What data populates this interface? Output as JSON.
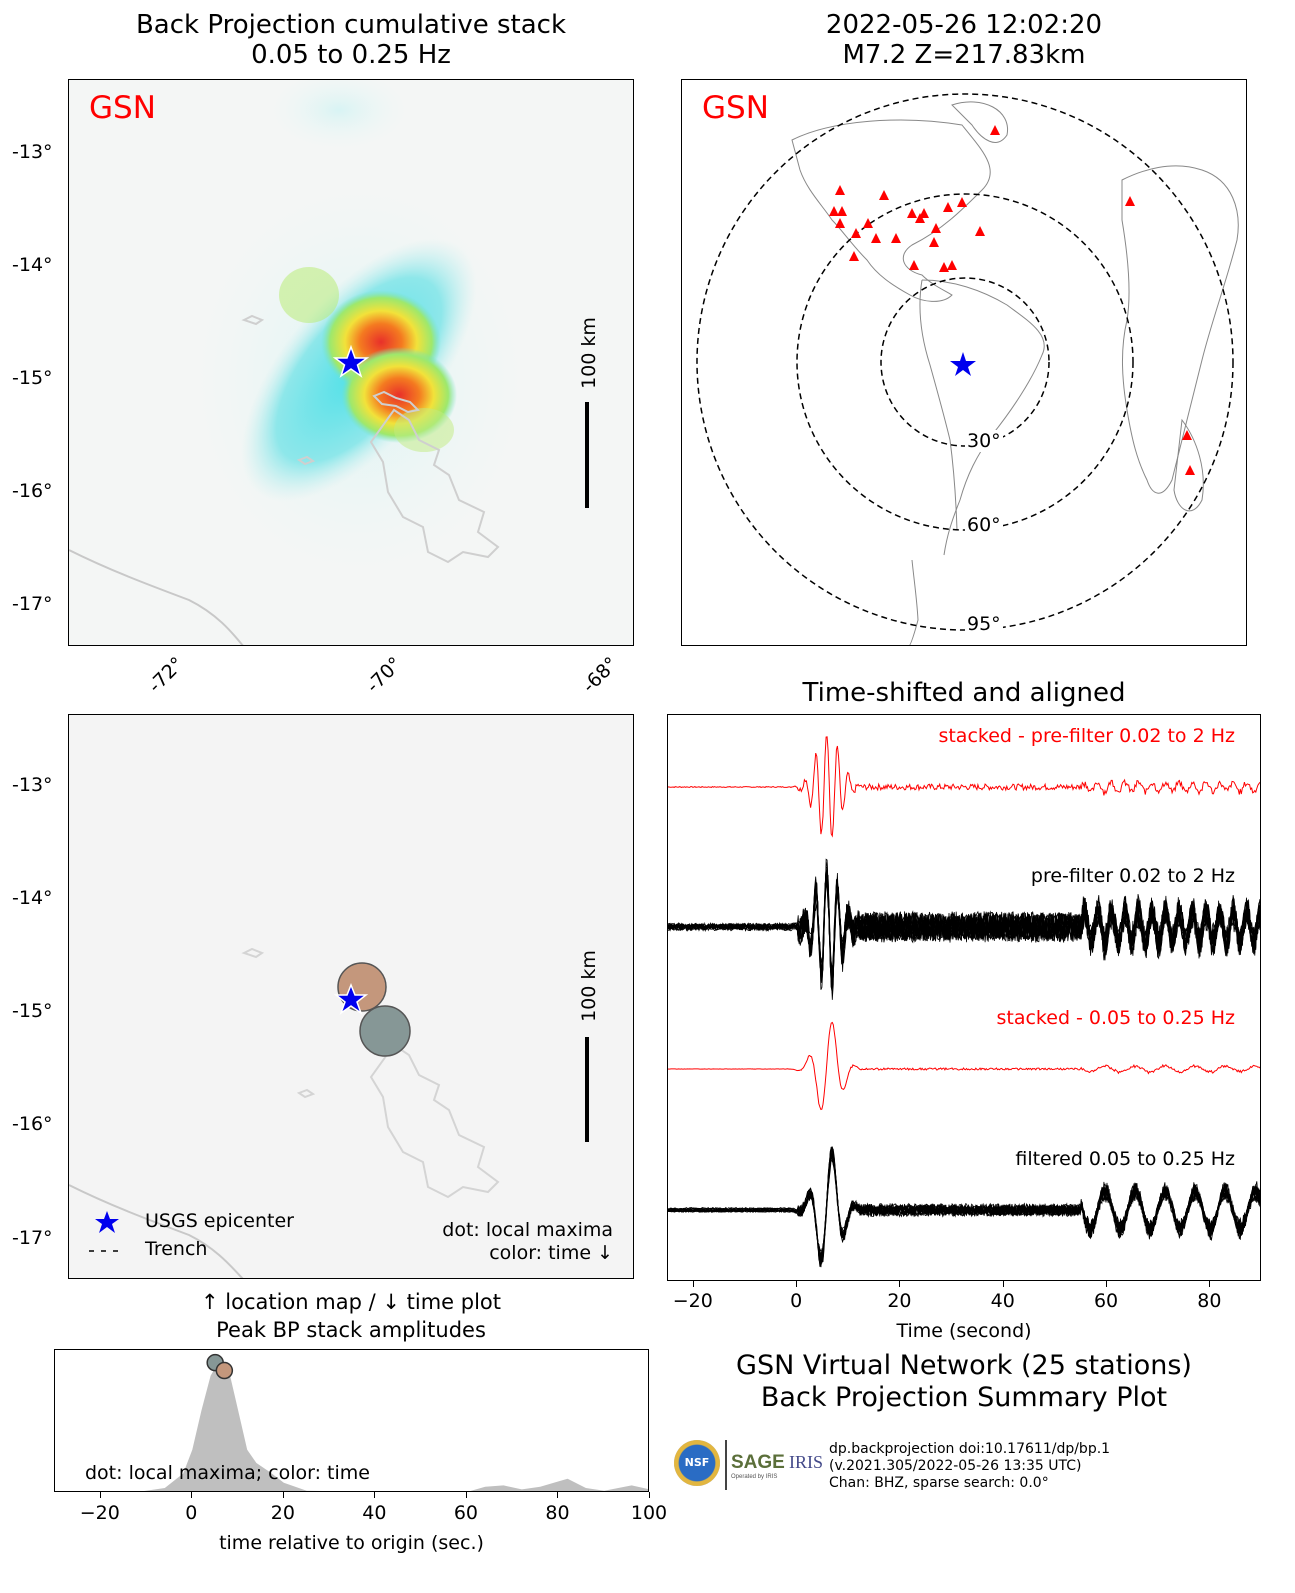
{
  "bp_map": {
    "title1": "Back Projection cumulative stack",
    "title2": "0.05 to 0.25 Hz",
    "network": "GSN",
    "scale_label": "100 km",
    "lat_ticks": [
      "-13°",
      "-14°",
      "-15°",
      "-16°",
      "-17°"
    ],
    "lon_ticks": [
      "-72°",
      "-70°",
      "-68°"
    ]
  },
  "station_map": {
    "title1": "2022-05-26 12:02:20",
    "title2": "M7.2 Z=217.83km",
    "network": "GSN",
    "ring_labels": [
      "30°",
      "60°",
      "95°"
    ]
  },
  "maxima_map": {
    "scale_label": "100 km",
    "lat_ticks": [
      "-13°",
      "-14°",
      "-15°",
      "-16°",
      "-17°"
    ],
    "legend_epicenter": "USGS epicenter",
    "legend_trench": "Trench",
    "note1": "dot: local maxima",
    "note2": "color: time ↓",
    "caption1": "↑ location map / ↓ time plot",
    "caption2": "Peak BP stack amplitudes"
  },
  "colors": {
    "network": "#ff0000",
    "epicenter": "#0000ff",
    "maxima_1": "#c4977c",
    "maxima_2": "#869796",
    "stack_trace": "#ff0000"
  },
  "chart_data": [
    {
      "type": "line",
      "title": "Time-shifted and aligned",
      "xlabel": "Time (second)",
      "xlim": [
        -25,
        90
      ],
      "x_ticks": [
        "−20",
        "0",
        "20",
        "40",
        "60",
        "80"
      ],
      "series": [
        {
          "name": "stacked - pre-filter 0.02 to 2 Hz"
        },
        {
          "name": "pre-filter 0.02 to 2 Hz"
        },
        {
          "name": "stacked - 0.05 to 0.25 Hz"
        },
        {
          "name": "filtered 0.05 to 0.25 Hz"
        }
      ]
    },
    {
      "type": "area",
      "xlabel": "time relative to origin (sec.)",
      "xlim": [
        -30,
        100
      ],
      "x_ticks": [
        "−20",
        "0",
        "20",
        "40",
        "60",
        "80",
        "100"
      ],
      "note": "dot: local maxima; color: time",
      "x": [
        -12,
        -6,
        -2,
        0,
        2,
        4,
        6,
        8,
        10,
        12,
        14,
        17,
        20,
        25,
        40,
        60,
        64,
        68,
        72,
        76,
        80,
        82,
        86,
        90,
        96,
        100
      ],
      "values": [
        0,
        0.03,
        0.14,
        0.32,
        0.62,
        0.88,
        1.0,
        0.92,
        0.62,
        0.32,
        0.22,
        0.15,
        0.07,
        0.01,
        0.0,
        0.0,
        0.04,
        0.05,
        0.02,
        0.04,
        0.08,
        0.1,
        0.03,
        0.01,
        0.05,
        0.02
      ],
      "maxima": [
        {
          "t": 5,
          "amp": 0.98,
          "color": "#869796"
        },
        {
          "t": 7,
          "amp": 0.92,
          "color": "#c4977c"
        }
      ]
    }
  ],
  "summary": {
    "line1": "GSN Virtual Network (25 stations)",
    "line2": "Back Projection Summary Plot"
  },
  "footer": {
    "nsf": "NSF",
    "sage": "SAGE",
    "sage_sub": "Operated by IRIS",
    "iris": "IRIS",
    "line1": "dp.backprojection doi:10.17611/dp/bp.1",
    "line2": "(v.2021.305/2022-05-26 13:35 UTC)",
    "line3": "Chan: BHZ, sparse search: 0.0°"
  }
}
